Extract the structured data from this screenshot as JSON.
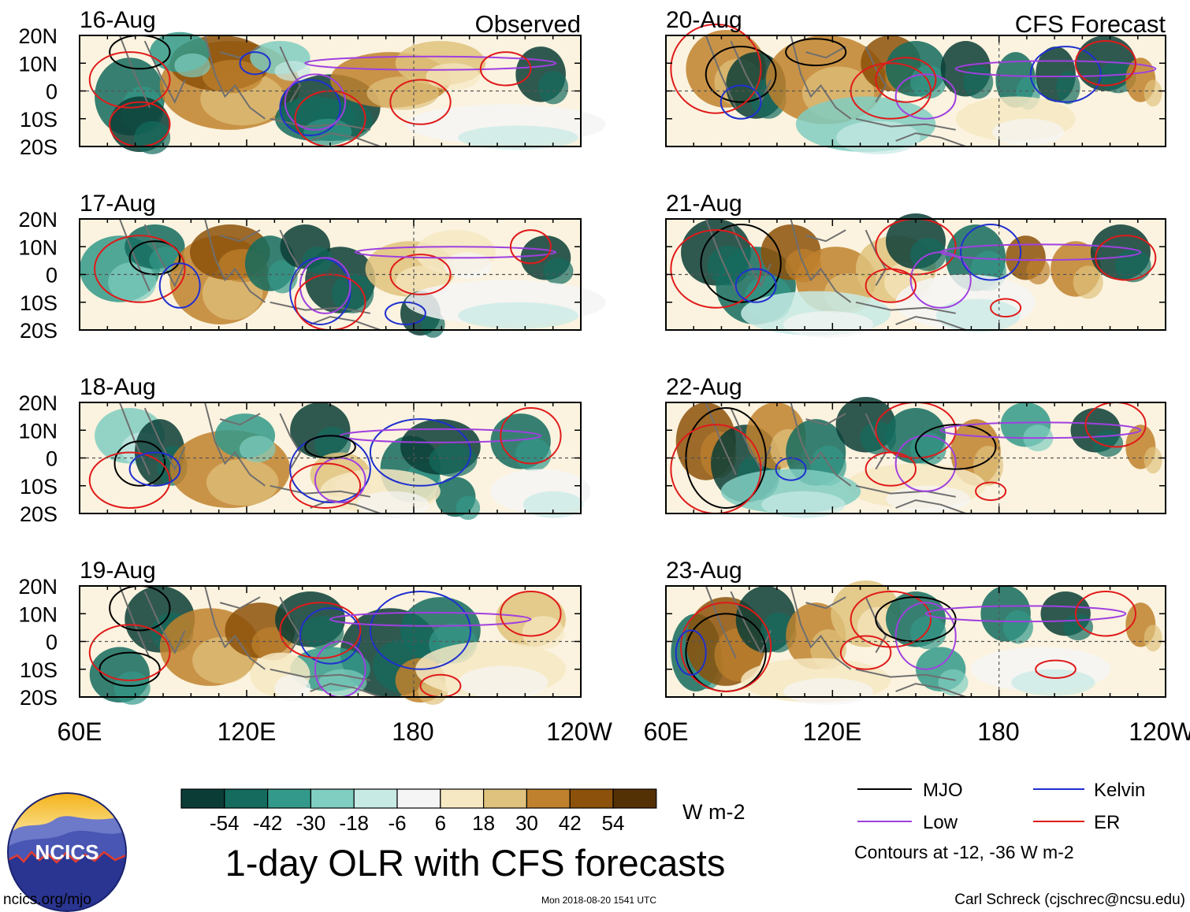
{
  "panels": {
    "observed": [
      {
        "date": "16-Aug",
        "tag": "Observed"
      },
      {
        "date": "17-Aug"
      },
      {
        "date": "18-Aug"
      },
      {
        "date": "19-Aug"
      }
    ],
    "forecast": [
      {
        "date": "20-Aug",
        "tag": "CFS Forecast"
      },
      {
        "date": "21-Aug"
      },
      {
        "date": "22-Aug"
      },
      {
        "date": "23-Aug"
      }
    ]
  },
  "axes": {
    "lat_labels": [
      "20N",
      "10N",
      "0",
      "10S",
      "20S"
    ],
    "lon_labels": [
      "60E",
      "120E",
      "180",
      "120W"
    ]
  },
  "colorbar": {
    "colors": [
      "#0b3d36",
      "#146b5e",
      "#33998a",
      "#80cdc1",
      "#c7eae5",
      "#f5f5f5",
      "#f6e8c3",
      "#dfc27d",
      "#bf812d",
      "#8c510a",
      "#543005"
    ],
    "tick_labels": [
      "-54",
      "-42",
      "-30",
      "-18",
      "-6",
      "6",
      "18",
      "30",
      "42",
      "54"
    ],
    "units": "W m-2"
  },
  "title": "1-day OLR with CFS forecasts",
  "legend": {
    "items": [
      {
        "label": "MJO",
        "color": "#000000"
      },
      {
        "label": "Kelvin",
        "color": "#1f2fd0"
      },
      {
        "label": "Low",
        "color": "#a040e0"
      },
      {
        "label": "ER",
        "color": "#e01a1a"
      }
    ],
    "note": "Contours at -12, -36 W m-2"
  },
  "logo": {
    "text": "NCICS"
  },
  "footer": {
    "url": "ncics.org/mjo",
    "timestamp": "Mon 2018-08-20 1541 UTC",
    "credit": "Carl Schreck (cjschrec@ncsu.edu)"
  }
}
